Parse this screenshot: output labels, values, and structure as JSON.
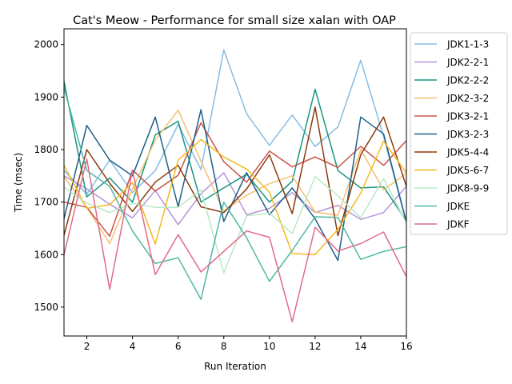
{
  "chart_data": {
    "type": "line",
    "title": "Cat's Meow - Performance for small size xalan with OAP",
    "xlabel": "Run Iteration",
    "ylabel": "Time (msec)",
    "xlim": [
      1,
      16
    ],
    "ylim": [
      1445,
      2030
    ],
    "xticks": [
      2,
      4,
      6,
      8,
      10,
      12,
      14,
      16
    ],
    "yticks": [
      1500,
      1600,
      1700,
      1800,
      1900,
      2000
    ],
    "grid": false,
    "legend_position": "outside-right",
    "x": [
      1,
      2,
      3,
      4,
      5,
      6,
      7,
      8,
      9,
      10,
      11,
      12,
      13,
      14,
      15,
      16
    ],
    "series": [
      {
        "name": "JDK1-1-3",
        "color": "#85bce5",
        "values": [
          1760,
          1715,
          1780,
          1718,
          1760,
          1848,
          1762,
          1990,
          1868,
          1808,
          1866,
          1806,
          1843,
          1970,
          1825,
          1660
        ]
      },
      {
        "name": "JDK2-2-1",
        "color": "#b594d8",
        "values": [
          1750,
          1725,
          1696,
          1670,
          1722,
          1657,
          1716,
          1756,
          1676,
          1688,
          1718,
          1680,
          1694,
          1667,
          1680,
          1730
        ]
      },
      {
        "name": "JDK2-2-2",
        "color": "#16957f",
        "values": [
          1930,
          1710,
          1746,
          1700,
          1828,
          1854,
          1700,
          1727,
          1753,
          1700,
          1740,
          1915,
          1760,
          1727,
          1729,
          1664
        ]
      },
      {
        "name": "JDK2-3-2",
        "color": "#f4c06e",
        "values": [
          1748,
          1690,
          1621,
          1725,
          1818,
          1875,
          1778,
          1683,
          1713,
          1735,
          1750,
          1681,
          1675,
          1800,
          1723,
          1755
        ]
      },
      {
        "name": "JDK3-2-1",
        "color": "#c8524a",
        "values": [
          1700,
          1690,
          1635,
          1761,
          1721,
          1751,
          1851,
          1777,
          1738,
          1797,
          1767,
          1786,
          1766,
          1806,
          1770,
          1817
        ]
      },
      {
        "name": "JDK3-2-3",
        "color": "#1f5f87",
        "values": [
          1668,
          1846,
          1780,
          1750,
          1862,
          1691,
          1876,
          1663,
          1756,
          1676,
          1727,
          1668,
          1589,
          1862,
          1830,
          1662
        ]
      },
      {
        "name": "JDK5-4-4",
        "color": "#8a3a0c",
        "values": [
          1637,
          1800,
          1736,
          1682,
          1738,
          1770,
          1691,
          1680,
          1725,
          1790,
          1678,
          1881,
          1636,
          1790,
          1862,
          1730
        ]
      },
      {
        "name": "JDK5-6-7",
        "color": "#f2b820",
        "values": [
          1770,
          1688,
          1695,
          1737,
          1620,
          1780,
          1819,
          1786,
          1763,
          1719,
          1602,
          1600,
          1648,
          1717,
          1816,
          1756
        ]
      },
      {
        "name": "JDK8-9-9",
        "color": "#b8e8c4",
        "values": [
          1728,
          1698,
          1680,
          1698,
          1690,
          1690,
          1723,
          1565,
          1674,
          1679,
          1640,
          1749,
          1712,
          1670,
          1745,
          1660
        ]
      },
      {
        "name": "JDKE",
        "color": "#4db8a4",
        "values": [
          1918,
          1760,
          1730,
          1645,
          1583,
          1594,
          1515,
          1700,
          1632,
          1549,
          1608,
          1672,
          1671,
          1591,
          1606,
          1615
        ]
      },
      {
        "name": "JDKF",
        "color": "#e06a8c",
        "values": [
          1600,
          1782,
          1534,
          1760,
          1562,
          1638,
          1567,
          1606,
          1645,
          1633,
          1472,
          1652,
          1607,
          1621,
          1643,
          1558
        ]
      }
    ]
  }
}
